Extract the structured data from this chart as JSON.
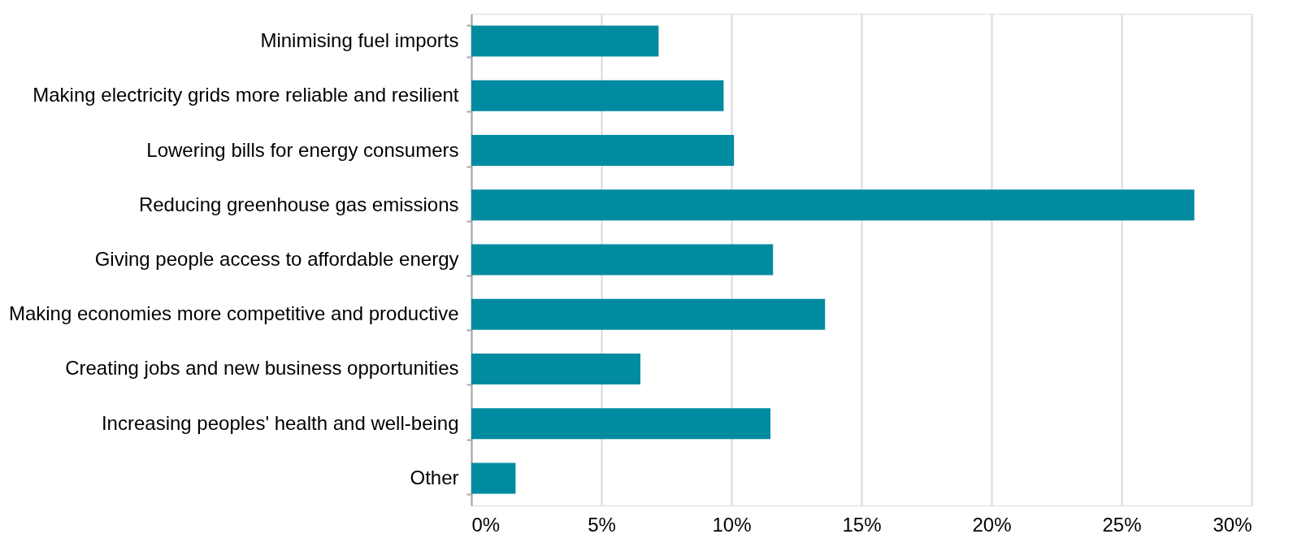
{
  "chart_data": {
    "type": "bar",
    "orientation": "horizontal",
    "categories": [
      "Minimising fuel imports",
      "Making electricity grids more reliable and resilient",
      "Lowering bills for energy consumers",
      "Reducing greenhouse gas emissions",
      "Giving people access to affordable energy",
      "Making economies more competitive and productive",
      "Creating jobs and new business opportunities",
      "Increasing peoples' health and well-being",
      "Other"
    ],
    "values": [
      7.2,
      9.7,
      10.1,
      27.8,
      11.6,
      13.6,
      6.5,
      11.5,
      1.7
    ],
    "color": "#008ba0",
    "xlim": [
      0,
      30
    ],
    "xticks": [
      {
        "value": 0,
        "label": "0%"
      },
      {
        "value": 5,
        "label": "5%"
      },
      {
        "value": 10,
        "label": "10%"
      },
      {
        "value": 15,
        "label": "15%"
      },
      {
        "value": 20,
        "label": "20%"
      },
      {
        "value": 25,
        "label": "25%"
      },
      {
        "value": 30,
        "label": "30%"
      }
    ],
    "grid": "x"
  }
}
